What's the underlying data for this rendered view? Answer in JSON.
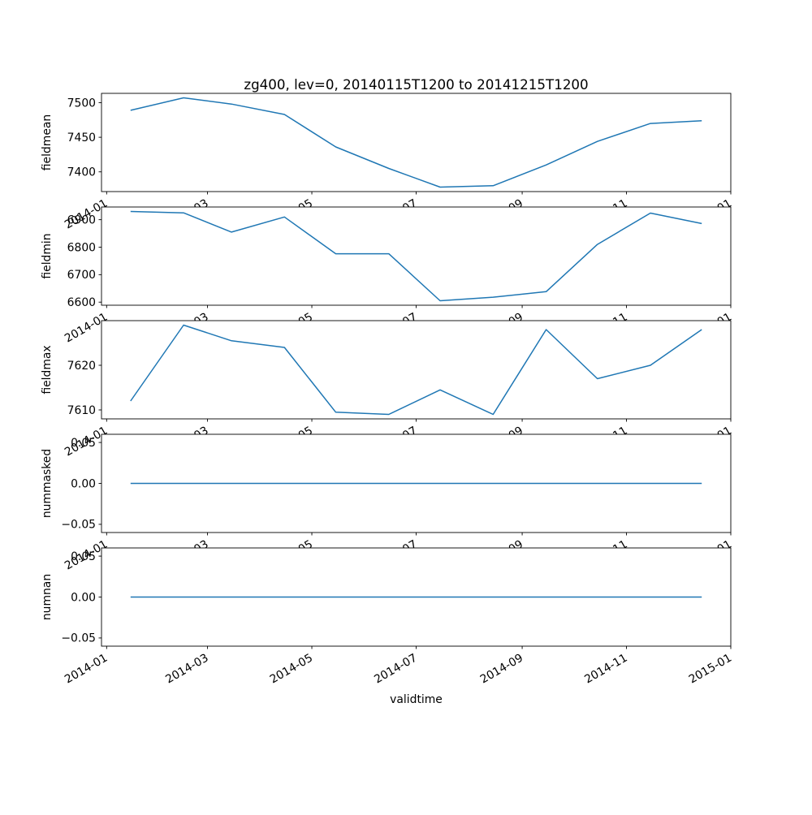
{
  "title": "zg400, lev=0, 20140115T1200 to 20141215T1200",
  "xlabel": "validtime",
  "line_color": "#1f77b4",
  "background": "#ffffff",
  "x_axis": {
    "tick_labels": [
      "2014-01",
      "2014-03",
      "2014-05",
      "2014-07",
      "2014-09",
      "2014-11",
      "2015-01"
    ],
    "tick_days": [
      0,
      59,
      120,
      181,
      243,
      304,
      365
    ],
    "xlim": [
      -3,
      365
    ]
  },
  "x_dates": [
    "2014-01-15",
    "2014-02-15",
    "2014-03-15",
    "2014-04-15",
    "2014-05-15",
    "2014-06-15",
    "2014-07-15",
    "2014-08-15",
    "2014-09-15",
    "2014-10-15",
    "2014-11-15",
    "2014-12-15"
  ],
  "x_days": [
    14,
    45,
    73,
    104,
    134,
    165,
    195,
    226,
    257,
    287,
    318,
    348
  ],
  "chart_data": [
    {
      "type": "line",
      "ylabel": "fieldmean",
      "values": [
        7489,
        7507,
        7498,
        7483,
        7436,
        7405,
        7378,
        7380,
        7410,
        7444,
        7470,
        7474
      ],
      "ytick_values": [
        7400,
        7450,
        7500
      ],
      "ytick_labels": [
        "7400",
        "7450",
        "7500"
      ],
      "ylim": [
        7371.5,
        7513.5
      ]
    },
    {
      "type": "line",
      "ylabel": "fieldmin",
      "values": [
        6930,
        6925,
        6855,
        6910,
        6776,
        6776,
        6605,
        6618,
        6638,
        6810,
        6924,
        6886
      ],
      "ytick_values": [
        6600,
        6700,
        6800,
        6900
      ],
      "ytick_labels": [
        "6600",
        "6700",
        "6800",
        "6900"
      ],
      "ylim": [
        6588.8,
        6946.2
      ]
    },
    {
      "type": "line",
      "ylabel": "fieldmax",
      "values": [
        7612,
        7629,
        7625.5,
        7624,
        7609.5,
        7609,
        7614.5,
        7609,
        7628,
        7617,
        7620,
        7628
      ],
      "ytick_values": [
        7610,
        7620
      ],
      "ytick_labels": [
        "7610",
        "7620"
      ],
      "ylim": [
        7608,
        7630
      ]
    },
    {
      "type": "line",
      "ylabel": "nummasked",
      "values": [
        0,
        0,
        0,
        0,
        0,
        0,
        0,
        0,
        0,
        0,
        0,
        0
      ],
      "ytick_values": [
        -0.05,
        0,
        0.05
      ],
      "ytick_labels": [
        "−0.05",
        "0.00",
        "0.05"
      ],
      "ylim": [
        -0.06,
        0.06
      ]
    },
    {
      "type": "line",
      "ylabel": "numnan",
      "values": [
        0,
        0,
        0,
        0,
        0,
        0,
        0,
        0,
        0,
        0,
        0,
        0
      ],
      "ytick_values": [
        -0.05,
        0,
        0.05
      ],
      "ytick_labels": [
        "−0.05",
        "0.00",
        "0.05"
      ],
      "ylim": [
        -0.06,
        0.06
      ]
    }
  ]
}
